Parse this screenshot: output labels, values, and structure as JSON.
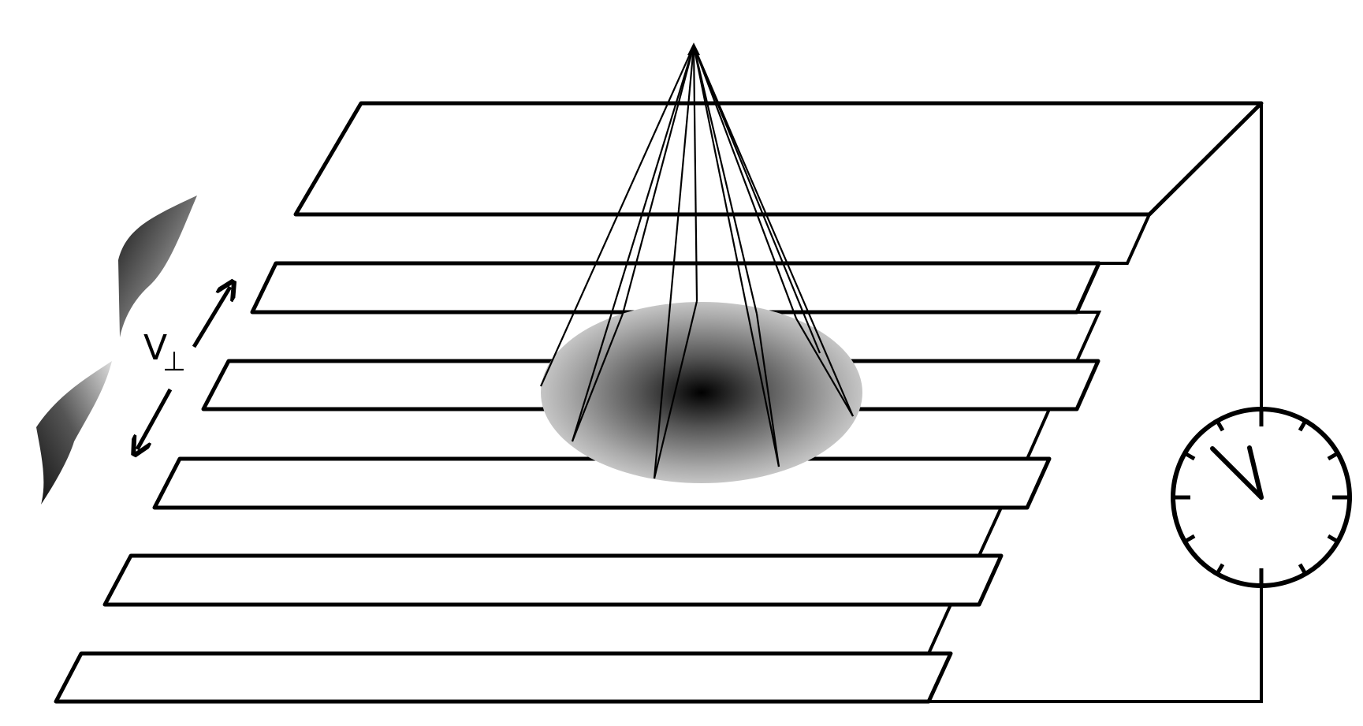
{
  "diagram": {
    "velocity_label": {
      "main": "V",
      "subscript": "⊥"
    },
    "icons": {
      "meter": "dial-meter-icon",
      "beam": "light-cone-icon",
      "wave": "wave-profile-icon"
    },
    "colors": {
      "ink": "#000000",
      "background": "#ffffff",
      "spot_center": "#000000",
      "spot_edge": "#d8d8d8"
    }
  }
}
